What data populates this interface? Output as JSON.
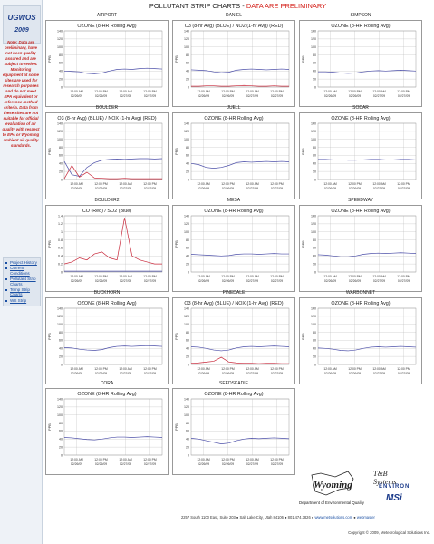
{
  "page_title": "POLLUTANT STRIP CHARTS",
  "page_title_sep": " - ",
  "page_warning": "DATA ARE PRELIMINARY",
  "sidebar": {
    "title": "UGWOS",
    "year": "2009",
    "note": "Note: Data are preliminary, have not been quality assured and are subject to review. Monitoring equipment at some sites are used for research purposes and do not meet EPA equivalent or reference method criteria. Data from these sites are not suitable for official evaluation of air quality with respect to EPA or Wyoming ambient air quality standards.",
    "links": [
      "Project History",
      "Current Conditions",
      "Pollutant Strip Charts",
      "Temp Strip Charts",
      "WS Strip"
    ]
  },
  "footer": {
    "wyoming_logo": "Wyoming",
    "deq_label": "Department of Environmental Quality",
    "tb_logo": "T&B Systems",
    "env_logo": "ENVIRON",
    "msi_logo": "MSi",
    "address": "2257 South 1100 East, Suite 203 ● Salt Lake City, Utah 84106 ● 801.474.3826 ●",
    "website": "www.metsolutions.com",
    "webmaster": "webmaster",
    "copyright": "Copyright © 2009, Meteorological Solutions Inc."
  },
  "colors": {
    "blue_series": "#4b4ea8",
    "red_series": "#c8283a",
    "grid": "#b8b8b8",
    "frame": "#999999"
  },
  "chart_data": [
    {
      "site": "AIRPORT",
      "label": "OZONE (8-HR Rolling Avg)",
      "type": "line",
      "ylabel": "PPB",
      "ylim": [
        0,
        140
      ],
      "yticks": [
        0,
        20,
        40,
        60,
        80,
        100,
        120,
        140
      ],
      "xticks": [
        "12:00 AM\n02/26/09",
        "12:00 PM\n02/26/09",
        "12:00 AM\n02/27/09",
        "12:00 PM\n02/27/09"
      ],
      "series": [
        {
          "color": "#4b4ea8",
          "values": [
            40,
            39,
            38,
            34,
            33,
            35,
            40,
            44,
            45,
            44,
            46,
            47,
            46,
            45
          ]
        }
      ]
    },
    {
      "site": "DANIEL",
      "label": "O3 (8-hr Avg) (BLUE) / NO2 (1-hr Avg) (RED)",
      "type": "line",
      "ylabel": "PPB",
      "ylim": [
        0,
        140
      ],
      "yticks": [
        0,
        20,
        40,
        60,
        80,
        100,
        120,
        140
      ],
      "xticks": [
        "12:00 AM\n02/26/09",
        "12:00 PM\n02/26/09",
        "12:00 AM\n02/27/09",
        "12:00 PM\n02/27/09"
      ],
      "series": [
        {
          "color": "#4b4ea8",
          "values": [
            43,
            42,
            41,
            38,
            36,
            37,
            42,
            44,
            45,
            44,
            43,
            44,
            45,
            44
          ]
        },
        {
          "color": "#c8283a",
          "values": [
            2,
            2,
            3,
            3,
            2,
            2,
            3,
            4,
            3,
            2,
            2,
            3,
            2,
            2
          ]
        }
      ]
    },
    {
      "site": "SIMPSON",
      "label": "OZONE (8-HR Rolling Avg)",
      "type": "line",
      "ylabel": "PPB",
      "ylim": [
        0,
        140
      ],
      "yticks": [
        0,
        20,
        40,
        60,
        80,
        100,
        120,
        140
      ],
      "xticks": [
        "12:00 AM\n02/26/09",
        "12:00 PM\n02/26/09",
        "12:00 AM\n02/27/09",
        "12:00 PM\n02/27/09"
      ],
      "series": [
        {
          "color": "#4b4ea8",
          "values": [
            38,
            38,
            37,
            35,
            34,
            35,
            38,
            40,
            41,
            40,
            41,
            42,
            41,
            40
          ]
        }
      ]
    },
    {
      "site": "BOULDER",
      "label": "O3 (8-hr Avg) (BLUE) / NOX (1-hr Avg) (RED)",
      "type": "line",
      "ylabel": "PPB",
      "ylim": [
        0,
        140
      ],
      "yticks": [
        0,
        20,
        40,
        60,
        80,
        100,
        120,
        140
      ],
      "xticks": [
        "12:00 AM\n02/26/09",
        "12:00 PM\n02/26/09",
        "12:00 AM\n02/27/09",
        "12:00 PM\n02/27/09"
      ],
      "series": [
        {
          "color": "#4b4ea8",
          "values": [
            45,
            12,
            8,
            30,
            42,
            48,
            50,
            51,
            50,
            51,
            52,
            52,
            51,
            52
          ]
        },
        {
          "color": "#c8283a",
          "values": [
            2,
            35,
            6,
            18,
            4,
            3,
            2,
            2,
            3,
            2,
            2,
            2,
            2,
            2
          ]
        }
      ]
    },
    {
      "site": "JUELL",
      "label": "OZONE (8-HR Rolling Avg)",
      "type": "line",
      "ylabel": "PPB",
      "ylim": [
        0,
        140
      ],
      "yticks": [
        0,
        20,
        40,
        60,
        80,
        100,
        120,
        140
      ],
      "xticks": [
        "12:00 AM\n02/26/09",
        "12:00 PM\n02/26/09",
        "12:00 AM\n02/27/09",
        "12:00 PM\n02/27/09"
      ],
      "series": [
        {
          "color": "#4b4ea8",
          "values": [
            40,
            37,
            30,
            28,
            30,
            35,
            42,
            44,
            43,
            44,
            45,
            44,
            45,
            44
          ]
        }
      ]
    },
    {
      "site": "SODAR",
      "label": "OZONE (8-HR Rolling Avg)",
      "type": "line",
      "ylabel": "PPB",
      "ylim": [
        0,
        140
      ],
      "yticks": [
        0,
        20,
        40,
        60,
        80,
        100,
        120,
        140
      ],
      "xticks": [
        "12:00 AM\n02/26/09",
        "12:00 PM\n02/26/09",
        "12:00 AM\n02/27/09",
        "12:00 PM\n02/27/09"
      ],
      "series": [
        {
          "color": "#4b4ea8",
          "values": [
            50,
            50,
            49,
            49,
            48,
            48,
            49,
            50,
            50,
            49,
            49,
            50,
            50,
            49
          ]
        }
      ]
    },
    {
      "site": "BOULDER2",
      "label": "CO (Red) / SO2 (Blue)",
      "type": "line",
      "ylabel": "PPB",
      "ylim": [
        0,
        1.4
      ],
      "yticks": [
        0,
        0.2,
        0.4,
        0.6,
        0.8,
        1,
        1.2,
        1.4
      ],
      "xticks": [
        "12:00 AM\n02/26/09",
        "12:00 PM\n02/26/09",
        "12:00 AM\n02/27/09",
        "12:00 PM\n02/27/09"
      ],
      "series": [
        {
          "color": "#c8283a",
          "values": [
            0.2,
            0.25,
            0.35,
            0.3,
            0.45,
            0.5,
            0.35,
            0.3,
            1.35,
            0.4,
            0.3,
            0.25,
            0.2,
            0.2
          ]
        },
        {
          "color": "#4b4ea8",
          "values": [
            0.02,
            0.02,
            0.02,
            0.02,
            0.02,
            0.02,
            0.02,
            0.02,
            0.02,
            0.02,
            0.02,
            0.02,
            0.02,
            0.02
          ]
        }
      ]
    },
    {
      "site": "MESA",
      "label": "OZONE (8-HR Rolling Avg)",
      "type": "line",
      "ylabel": "PPB",
      "ylim": [
        0,
        140
      ],
      "yticks": [
        0,
        20,
        40,
        60,
        80,
        100,
        120,
        140
      ],
      "xticks": [
        "12:00 AM\n02/26/09",
        "12:00 PM\n02/26/09",
        "12:00 AM\n02/27/09",
        "12:00 PM\n02/27/09"
      ],
      "series": [
        {
          "color": "#4b4ea8",
          "values": [
            44,
            43,
            42,
            41,
            40,
            41,
            44,
            45,
            45,
            44,
            45,
            46,
            45,
            45
          ]
        }
      ]
    },
    {
      "site": "SPEEDWAY",
      "label": "OZONE (8-HR Rolling Avg)",
      "type": "line",
      "ylabel": "PPB",
      "ylim": [
        0,
        140
      ],
      "yticks": [
        0,
        20,
        40,
        60,
        80,
        100,
        120,
        140
      ],
      "xticks": [
        "12:00 AM\n02/26/09",
        "12:00 PM\n02/26/09",
        "12:00 AM\n02/27/09",
        "12:00 PM\n02/27/09"
      ],
      "series": [
        {
          "color": "#4b4ea8",
          "values": [
            43,
            42,
            40,
            38,
            38,
            40,
            44,
            46,
            47,
            46,
            47,
            48,
            47,
            46
          ]
        }
      ]
    },
    {
      "site": "BUCKHORN",
      "label": "OZONE (8-HR Rolling Avg)",
      "type": "line",
      "ylabel": "PPB",
      "ylim": [
        0,
        140
      ],
      "yticks": [
        0,
        20,
        40,
        60,
        80,
        100,
        120,
        140
      ],
      "xticks": [
        "12:00 AM\n02/26/09",
        "12:00 PM\n02/26/09",
        "12:00 AM\n02/27/09",
        "12:00 PM\n02/27/09"
      ],
      "series": [
        {
          "color": "#4b4ea8",
          "values": [
            42,
            41,
            38,
            36,
            35,
            37,
            42,
            45,
            46,
            45,
            46,
            47,
            46,
            45
          ]
        }
      ]
    },
    {
      "site": "PINEDALE",
      "label": "O3 (8-hr Avg) (BLUE) / NOX (1-hr Avg) (RED)",
      "type": "line",
      "ylabel": "PPB",
      "ylim": [
        0,
        140
      ],
      "yticks": [
        0,
        20,
        40,
        60,
        80,
        100,
        120,
        140
      ],
      "xticks": [
        "12:00 AM\n02/26/09",
        "12:00 PM\n02/26/09",
        "12:00 AM\n02/27/09",
        "12:00 PM\n02/27/09"
      ],
      "series": [
        {
          "color": "#4b4ea8",
          "values": [
            44,
            43,
            40,
            36,
            34,
            36,
            41,
            44,
            45,
            44,
            45,
            46,
            45,
            44
          ]
        },
        {
          "color": "#c8283a",
          "values": [
            3,
            4,
            6,
            8,
            18,
            6,
            4,
            3,
            3,
            2,
            3,
            3,
            2,
            2
          ]
        }
      ]
    },
    {
      "site": "WARBONNET",
      "label": "OZONE (8-HR Rolling Avg)",
      "type": "line",
      "ylabel": "PPB",
      "ylim": [
        0,
        140
      ],
      "yticks": [
        0,
        20,
        40,
        60,
        80,
        100,
        120,
        140
      ],
      "xticks": [
        "12:00 AM\n02/26/09",
        "12:00 PM\n02/26/09",
        "12:00 AM\n02/27/09",
        "12:00 PM\n02/27/09"
      ],
      "series": [
        {
          "color": "#4b4ea8",
          "values": [
            41,
            40,
            38,
            35,
            34,
            36,
            40,
            43,
            44,
            43,
            44,
            45,
            44,
            43
          ]
        }
      ]
    },
    {
      "site": "CORA",
      "label": "OZONE (8-HR Rolling Avg)",
      "type": "line",
      "ylabel": "PPB",
      "ylim": [
        0,
        140
      ],
      "yticks": [
        0,
        20,
        40,
        60,
        80,
        100,
        120,
        140
      ],
      "xticks": [
        "12:00 AM\n02/26/09",
        "12:00 PM\n02/26/09",
        "12:00 AM\n02/27/09",
        "12:00 PM\n02/27/09"
      ],
      "series": [
        {
          "color": "#4b4ea8",
          "values": [
            44,
            43,
            41,
            39,
            38,
            40,
            43,
            45,
            45,
            44,
            45,
            46,
            45,
            44
          ]
        }
      ]
    },
    {
      "site": "SEEDSKADIE",
      "label": "OZONE (8-HR Rolling Avg)",
      "type": "line",
      "ylabel": "PPB",
      "ylim": [
        0,
        140
      ],
      "yticks": [
        0,
        20,
        40,
        60,
        80,
        100,
        120,
        140
      ],
      "xticks": [
        "12:00 AM\n02/26/09",
        "12:00 PM\n02/26/09",
        "12:00 AM\n02/27/09",
        "12:00 PM\n02/27/09"
      ],
      "series": [
        {
          "color": "#4b4ea8",
          "values": [
            42,
            40,
            36,
            32,
            28,
            30,
            36,
            40,
            42,
            41,
            42,
            43,
            42,
            41
          ]
        }
      ]
    }
  ]
}
